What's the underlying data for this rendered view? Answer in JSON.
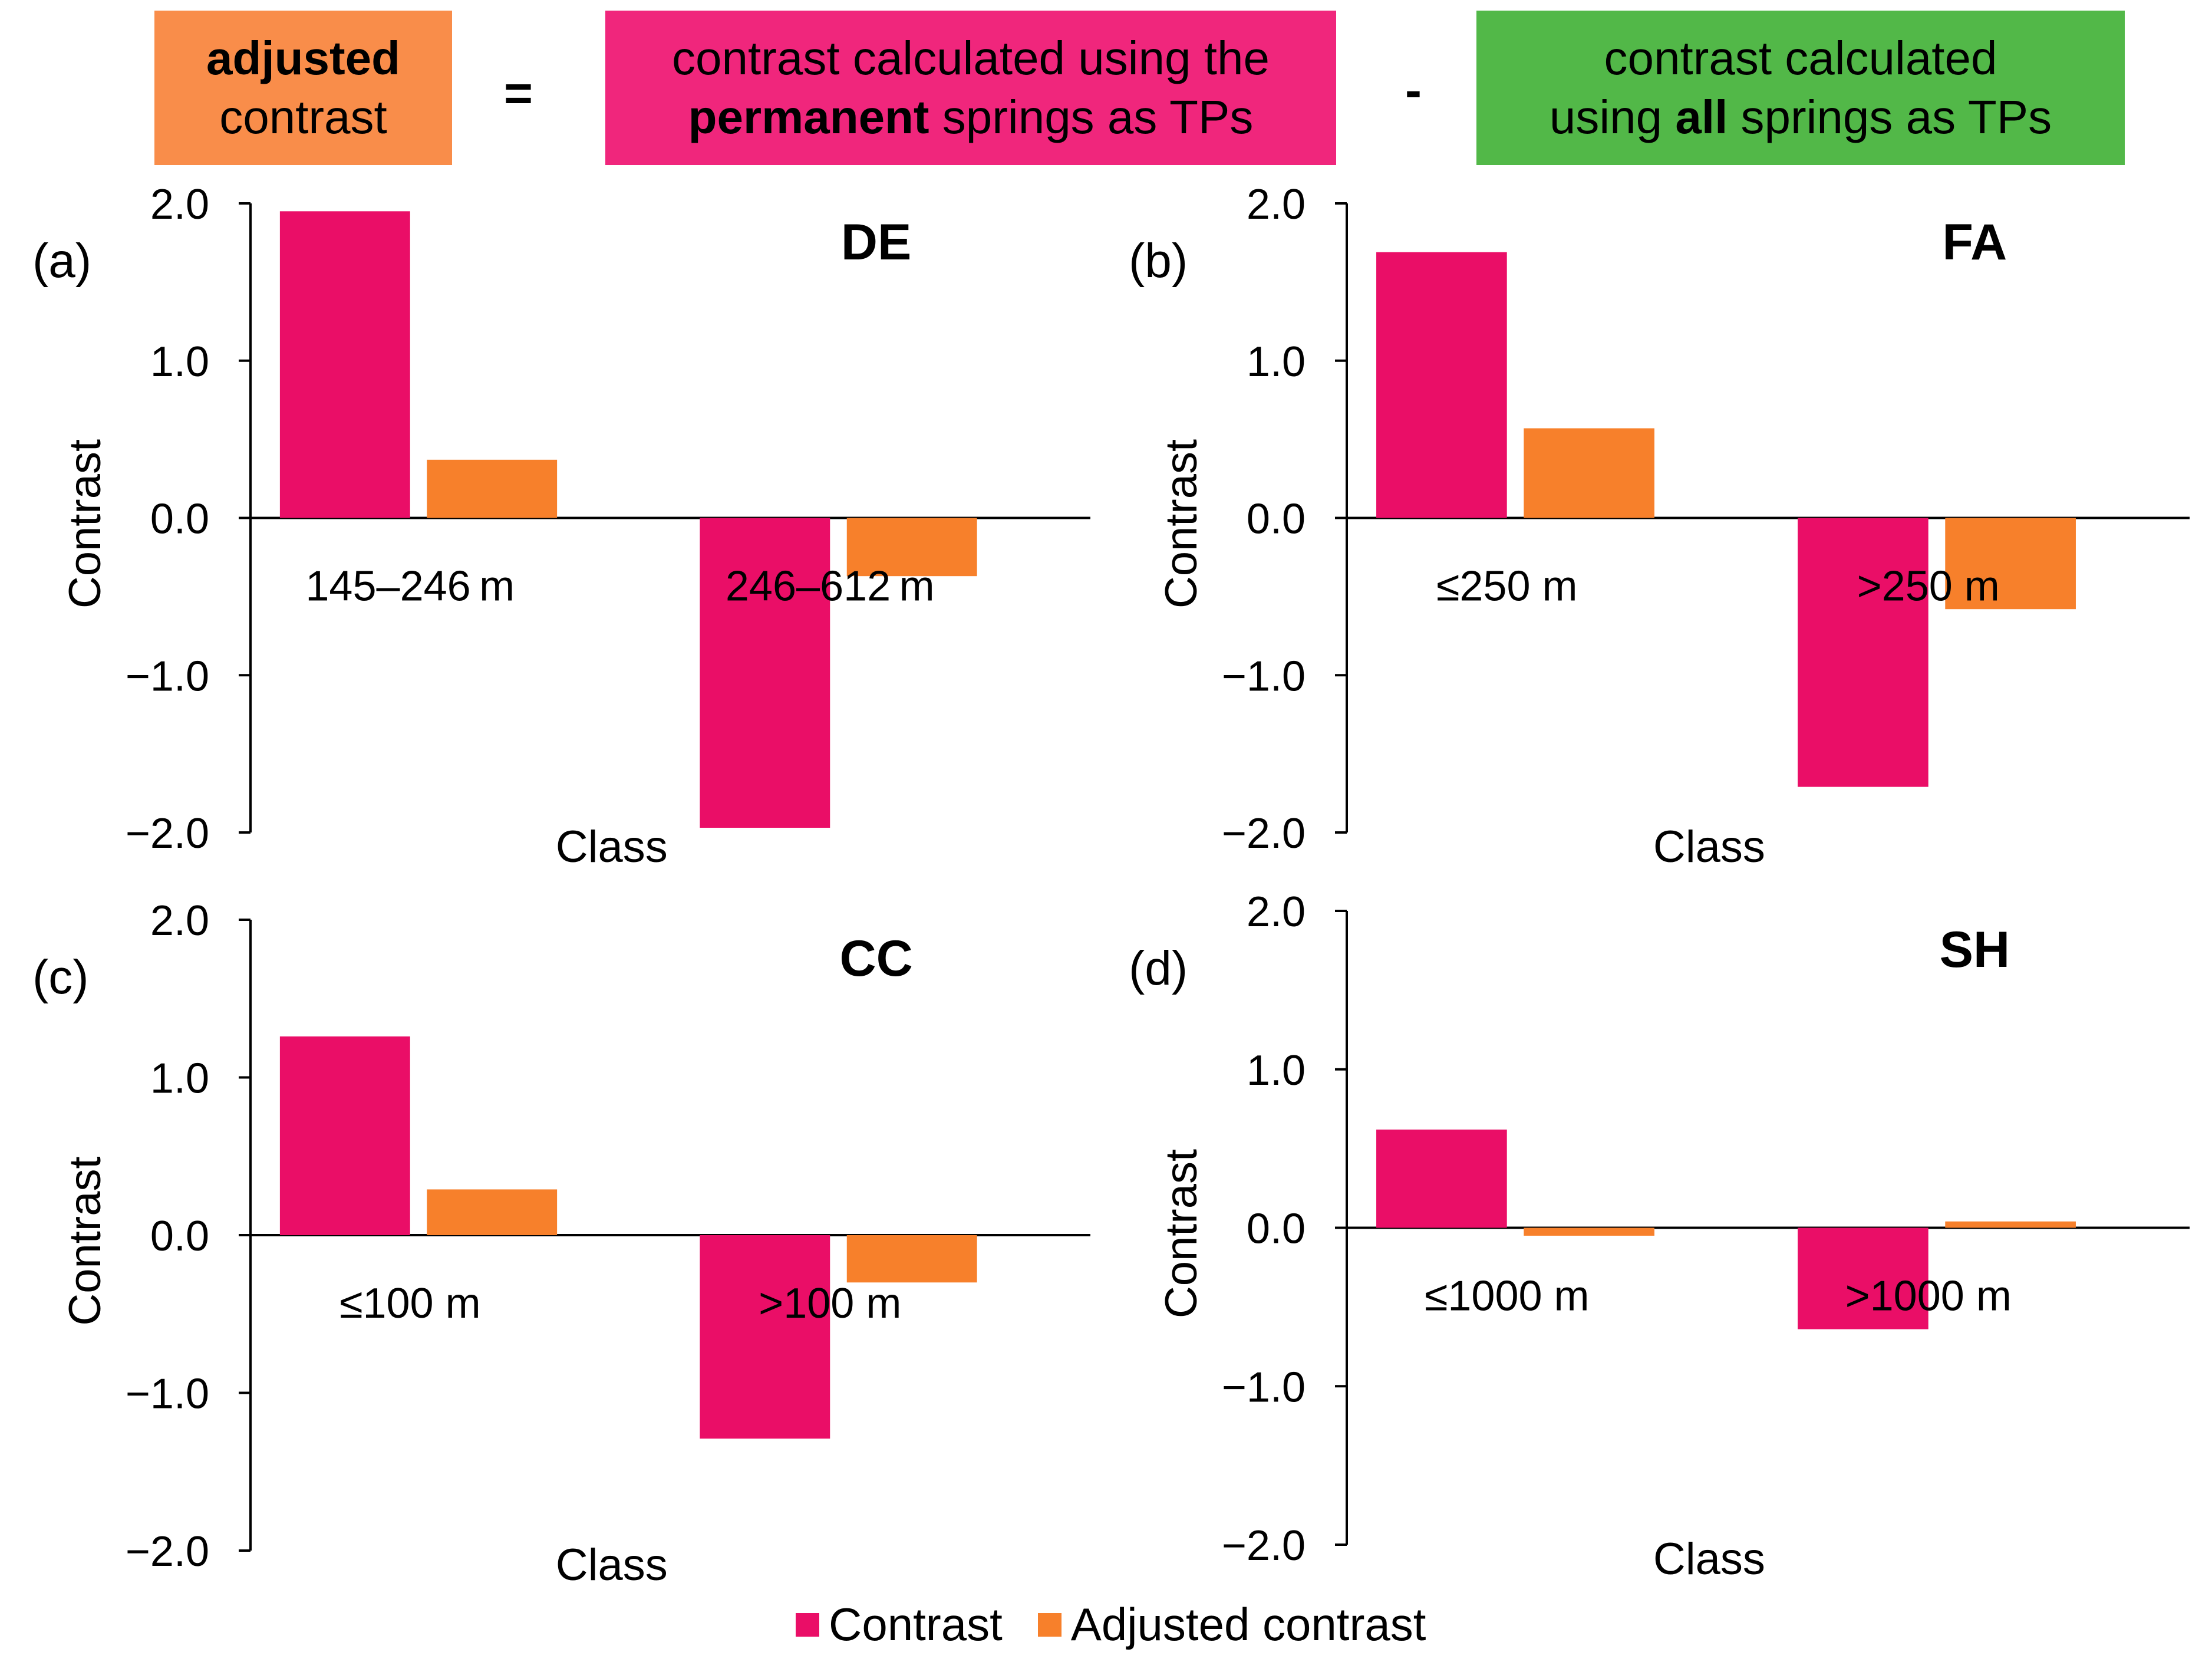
{
  "header": {
    "adjusted": {
      "bold": "adjusted",
      "rest": "contrast",
      "color": "#F98D4A"
    },
    "equals": "=",
    "permanent": {
      "line1": "contrast calculated using the",
      "bold": "permanent",
      "rest": " springs as TPs",
      "color": "#F0267C"
    },
    "minus": "-",
    "all": {
      "line1": "contrast calculated",
      "pre": "using ",
      "bold": "all",
      "rest": " springs as TPs",
      "color": "#52B848"
    }
  },
  "legend": {
    "contrast_label": "Contrast",
    "adjusted_label": "Adjusted contrast",
    "contrast_color": "#EA0E67",
    "adjusted_color": "#F7802B"
  },
  "chart_data": [
    {
      "type": "bar",
      "panel_label": "(a)",
      "title": "DE",
      "xlabel": "Class",
      "ylabel": "Contrast",
      "ylim": [
        -2.0,
        2.0
      ],
      "yticks": [
        "2.0",
        "1.0",
        "0.0",
        "−1.0",
        "−2.0"
      ],
      "categories": [
        "145–246 m",
        "246–612 m"
      ],
      "series": [
        {
          "name": "Contrast",
          "values": [
            1.95,
            -1.97
          ]
        },
        {
          "name": "Adjusted contrast",
          "values": [
            0.37,
            -0.37
          ]
        }
      ]
    },
    {
      "type": "bar",
      "panel_label": "(b)",
      "title": "FA",
      "xlabel": "Class",
      "ylabel": "Contrast",
      "ylim": [
        -2.0,
        2.0
      ],
      "yticks": [
        "2.0",
        "1.0",
        "0.0",
        "−1.0",
        "−2.0"
      ],
      "categories": [
        "≤250 m",
        ">250 m"
      ],
      "series": [
        {
          "name": "Contrast",
          "values": [
            1.69,
            -1.71
          ]
        },
        {
          "name": "Adjusted contrast",
          "values": [
            0.57,
            -0.58
          ]
        }
      ]
    },
    {
      "type": "bar",
      "panel_label": "(c)",
      "title": "CC",
      "xlabel": "Class",
      "ylabel": "Contrast",
      "ylim": [
        -2.0,
        2.0
      ],
      "yticks": [
        "2.0",
        "1.0",
        "0.0",
        "−1.0",
        "−2.0"
      ],
      "categories": [
        "≤100 m",
        ">100 m"
      ],
      "series": [
        {
          "name": "Contrast",
          "values": [
            1.26,
            -1.29
          ]
        },
        {
          "name": "Adjusted contrast",
          "values": [
            0.29,
            -0.3
          ]
        }
      ]
    },
    {
      "type": "bar",
      "panel_label": "(d)",
      "title": "SH",
      "xlabel": "Class",
      "ylabel": "Contrast",
      "ylim": [
        -2.0,
        2.0
      ],
      "yticks": [
        "2.0",
        "1.0",
        "0.0",
        "−1.0",
        "−2.0"
      ],
      "categories": [
        "≤1000 m",
        ">1000 m"
      ],
      "series": [
        {
          "name": "Contrast",
          "values": [
            0.62,
            -0.64
          ]
        },
        {
          "name": "Adjusted contrast",
          "values": [
            -0.05,
            0.04
          ]
        }
      ]
    }
  ]
}
